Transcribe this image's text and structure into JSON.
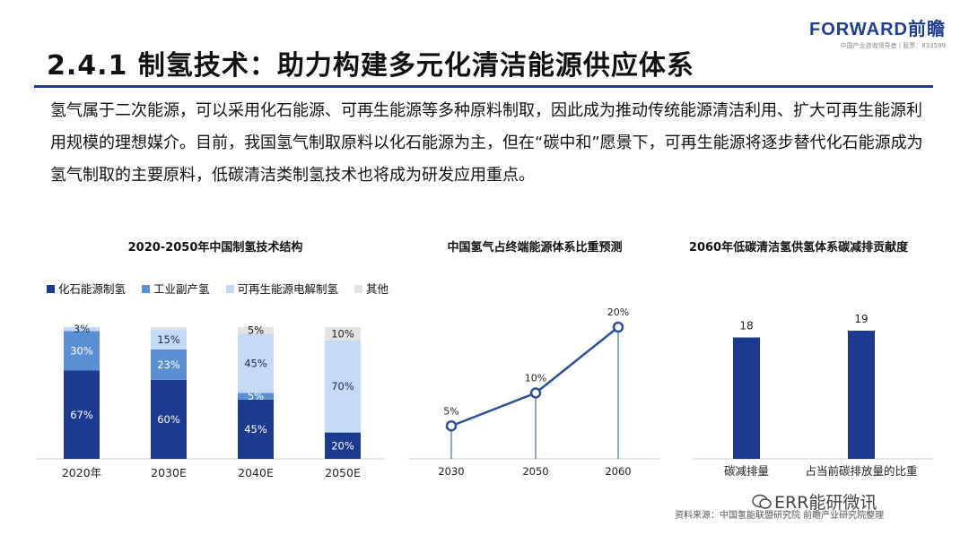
{
  "logo": {
    "main": "FORWARD前瞻",
    "sub": "中国产业咨询领导者 | 股票：833599"
  },
  "title": "2.4.1 制氢技术：助力构建多元化清洁能源供应体系",
  "body": "氢气属于二次能源，可以采用化石能源、可再生能源等多种原料制取，因此成为推动传统能源清洁利用、扩大可再生能源利用规模的理想媒介。目前，我国氢气制取原料以化石能源为主，但在“碳中和”愿景下，可再生能源将逐步替代化石能源成为氢气制取的主要原料，低碳清洁类制氢技术也将成为研发应用重点。",
  "footer": {
    "source": "资料来源：中国氢能联盟研究院 前瞻产业研究院整理",
    "watermark": "ERR能研微讯"
  },
  "colors": {
    "accent": "#1f3a8a",
    "fossil": "#1c3a8f",
    "industrial": "#5b8fd4",
    "renewable": "#c4daf5",
    "other": "#e3e3e3",
    "line": "#2c4f98"
  },
  "chart_data": [
    {
      "type": "bar",
      "stacked": true,
      "title": "2020-2050年中国制氢技术结构",
      "categories": [
        "2020年",
        "2030E",
        "2040E",
        "2050E"
      ],
      "series": [
        {
          "name": "化石能源制氢",
          "values": [
            67,
            60,
            45,
            20
          ],
          "labels": [
            "67%",
            "60%",
            "45%",
            "20%"
          ]
        },
        {
          "name": "工业副产氢",
          "values": [
            30,
            23,
            5,
            0
          ],
          "labels": [
            "30%",
            "23%",
            "5%",
            ""
          ]
        },
        {
          "name": "可再生能源电解制氢",
          "values": [
            3,
            15,
            45,
            70
          ],
          "labels": [
            "3%",
            "15%",
            "45%",
            "70%"
          ]
        },
        {
          "name": "其他",
          "values": [
            0,
            2,
            5,
            10
          ],
          "labels": [
            "",
            "",
            "5%",
            "10%"
          ]
        }
      ],
      "ylim": [
        0,
        100
      ],
      "legend": "top",
      "grid": false
    },
    {
      "type": "line",
      "title": "中国氢气占终端能源体系比重预测",
      "categories": [
        "2030",
        "2050",
        "2060"
      ],
      "values": [
        5,
        10,
        20
      ],
      "labels": [
        "5%",
        "10%",
        "20%"
      ],
      "ylim": [
        0,
        20
      ],
      "grid": false
    },
    {
      "type": "bar",
      "title": "2060年低碳清洁氢供氢体系碳减排贡献度",
      "categories": [
        "碳减排量",
        "占当前碳排放量的比重"
      ],
      "values": [
        18,
        19
      ],
      "labels": [
        "18",
        "19"
      ],
      "ylim": [
        0,
        19
      ],
      "grid": false
    }
  ]
}
